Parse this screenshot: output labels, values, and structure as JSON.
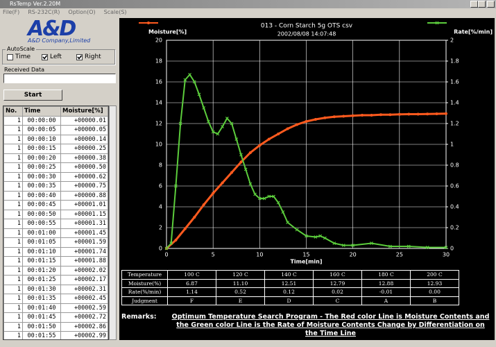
{
  "window": {
    "title": "RsTemp Ver.2.20M",
    "menu": [
      "File(F)",
      "RS-232C(R)",
      "Option(O)",
      "Scale(S)"
    ]
  },
  "sidebar": {
    "logo": "A&D",
    "company": "A&D Company,Limited",
    "autoscale": {
      "label": "AutoScale",
      "options": [
        {
          "label": "Time",
          "checked": false
        },
        {
          "label": "Left",
          "checked": true
        },
        {
          "label": "Right",
          "checked": true
        }
      ]
    },
    "received_label": "Received Data",
    "start_button": "Start",
    "table": {
      "headers": [
        "No.",
        "Time",
        "Moisture[%]"
      ],
      "rows": [
        [
          "1",
          "00:00:00",
          "+00000.01"
        ],
        [
          "1",
          "00:00:05",
          "+00000.05"
        ],
        [
          "1",
          "00:00:10",
          "+00000.14"
        ],
        [
          "1",
          "00:00:15",
          "+00000.25"
        ],
        [
          "1",
          "00:00:20",
          "+00000.38"
        ],
        [
          "1",
          "00:00:25",
          "+00000.50"
        ],
        [
          "1",
          "00:00:30",
          "+00000.62"
        ],
        [
          "1",
          "00:00:35",
          "+00000.75"
        ],
        [
          "1",
          "00:00:40",
          "+00000.88"
        ],
        [
          "1",
          "00:00:45",
          "+00001.01"
        ],
        [
          "1",
          "00:00:50",
          "+00001.15"
        ],
        [
          "1",
          "00:00:55",
          "+00001.31"
        ],
        [
          "1",
          "00:01:00",
          "+00001.45"
        ],
        [
          "1",
          "00:01:05",
          "+00001.59"
        ],
        [
          "1",
          "00:01:10",
          "+00001.74"
        ],
        [
          "1",
          "00:01:15",
          "+00001.88"
        ],
        [
          "1",
          "00:01:20",
          "+00002.02"
        ],
        [
          "1",
          "00:01:25",
          "+00002.17"
        ],
        [
          "1",
          "00:01:30",
          "+00002.31"
        ],
        [
          "1",
          "00:01:35",
          "+00002.45"
        ],
        [
          "1",
          "00:01:40",
          "+00002.59"
        ],
        [
          "1",
          "00:01:45",
          "+00002.72"
        ],
        [
          "1",
          "00:01:50",
          "+00002.86"
        ],
        [
          "1",
          "00:01:55",
          "+00002.99"
        ]
      ]
    }
  },
  "chart_data": {
    "type": "line",
    "title": "013 - Corn Starch  5g  OTS csv",
    "subtitle": "2002/08/08 14:07:48",
    "y_label": "Moisture[%]",
    "y2_label": "Rate[%/min]",
    "x_label": "Time[min]",
    "xlim": [
      0,
      30
    ],
    "xticks": [
      0,
      5,
      10,
      15,
      20,
      25,
      30
    ],
    "ylim": [
      0,
      20
    ],
    "yticks": [
      0,
      2,
      4,
      6,
      8,
      10,
      12,
      14,
      16,
      18,
      20
    ],
    "y2lim": [
      0,
      2
    ],
    "y2ticks": [
      0,
      0.2,
      0.4,
      0.6,
      0.8,
      1,
      1.2,
      1.4,
      1.6,
      1.8,
      2
    ],
    "grid": true,
    "series": [
      {
        "name": "Moisture[%]",
        "color": "#ff5a1e",
        "marker": "circle",
        "x": [
          0,
          1,
          2,
          3,
          4,
          5,
          6,
          7,
          8,
          9,
          10,
          11,
          12,
          13,
          14,
          15,
          16,
          17,
          18,
          19,
          20,
          21,
          22,
          23,
          24,
          25,
          26,
          27,
          28,
          29,
          30
        ],
        "values": [
          0,
          0.8,
          1.9,
          3.0,
          4.2,
          5.3,
          6.3,
          7.3,
          8.3,
          9.2,
          9.9,
          10.5,
          11.0,
          11.5,
          11.9,
          12.2,
          12.4,
          12.55,
          12.65,
          12.7,
          12.75,
          12.8,
          12.8,
          12.85,
          12.85,
          12.88,
          12.9,
          12.9,
          12.92,
          12.93,
          12.95
        ]
      },
      {
        "name": "Rate[%/min]",
        "color": "#5ccd3c",
        "marker": "x",
        "axis": "y2",
        "x": [
          0,
          0.5,
          1,
          1.5,
          2,
          2.5,
          3,
          3.5,
          4,
          4.5,
          5,
          5.5,
          6,
          6.5,
          7,
          7.5,
          8,
          8.5,
          9,
          9.5,
          10,
          10.5,
          11,
          11.5,
          12,
          12.5,
          13,
          14,
          15,
          16,
          16.5,
          17,
          18,
          19,
          20,
          22,
          24,
          26,
          28,
          30
        ],
        "values": [
          0,
          0.05,
          0.6,
          1.2,
          1.62,
          1.67,
          1.6,
          1.48,
          1.35,
          1.22,
          1.12,
          1.1,
          1.17,
          1.25,
          1.2,
          1.05,
          0.9,
          0.76,
          0.62,
          0.52,
          0.48,
          0.48,
          0.5,
          0.5,
          0.44,
          0.35,
          0.25,
          0.18,
          0.12,
          0.11,
          0.12,
          0.1,
          0.05,
          0.03,
          0.03,
          0.05,
          0.02,
          0.02,
          0.01,
          0.01
        ]
      }
    ]
  },
  "summary_table": {
    "rows": [
      [
        "Temperature",
        "100 C",
        "120 C",
        "140 C",
        "160 C",
        "180 C",
        "200 C"
      ],
      [
        "Moisture(%)",
        "6.87",
        "11.10",
        "12.51",
        "12.79",
        "12.88",
        "12.93"
      ],
      [
        "Rate(%/min)",
        "1.14",
        "0.52",
        "0.12",
        "0.02",
        "-0.01",
        "0.00"
      ],
      [
        "Judgment",
        "F",
        "E",
        "D",
        "C",
        "A",
        "B"
      ]
    ]
  },
  "remarks": {
    "label": "Remarks:",
    "text": "Optimum Temperature Search Program  - The Red color Line is Moisture Contents and the Green color Line is the Rate of Moisture Contents Change by Differentiation on the Time Line"
  }
}
